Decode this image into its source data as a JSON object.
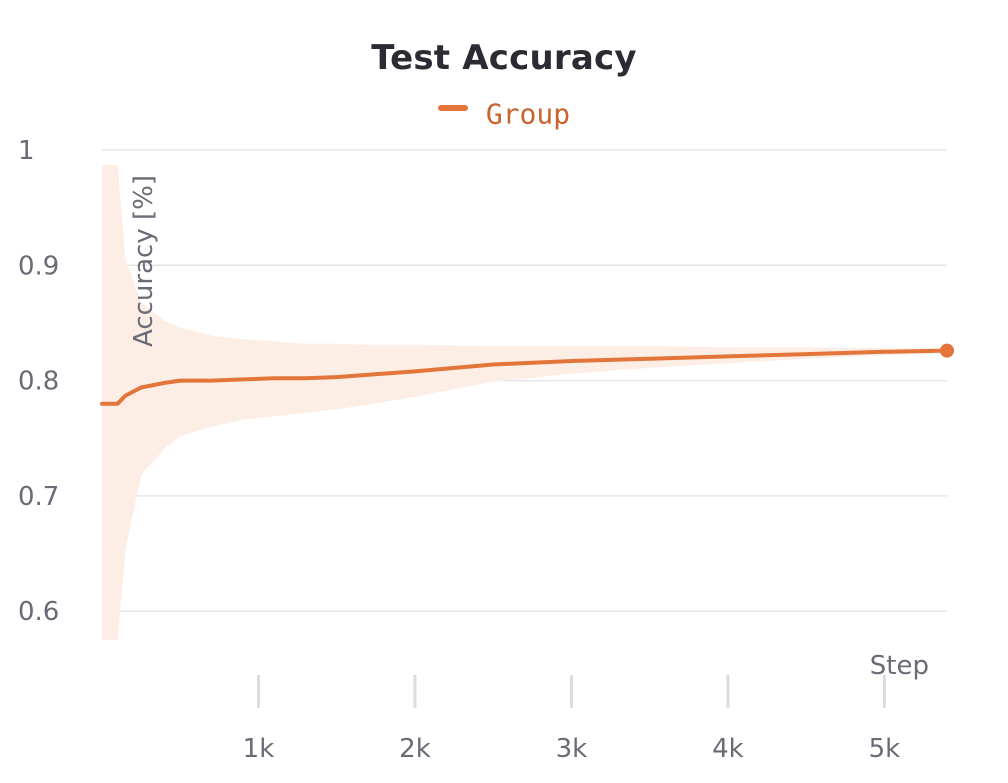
{
  "chart_data": {
    "type": "line",
    "title": "Test Accuracy",
    "xlabel": "Step",
    "ylabel": "Accuracy [%]",
    "xlim": [
      0,
      5400
    ],
    "ylim": [
      0.575,
      1.0
    ],
    "y_ticks": [
      1,
      0.9,
      0.8,
      0.7,
      0.6
    ],
    "y_tick_labels": [
      "1",
      "0.9",
      "0.8",
      "0.7",
      "0.6"
    ],
    "x_ticks": [
      1000,
      2000,
      3000,
      4000,
      5000
    ],
    "x_tick_labels": [
      "1k",
      "2k",
      "3k",
      "4k",
      "5k"
    ],
    "grid": true,
    "legend_position": "top-center",
    "series": [
      {
        "name": "Group",
        "color": "#e3753a",
        "band_color": "#fdeee5",
        "x": [
          0,
          100,
          150,
          250,
          400,
          500,
          700,
          900,
          1100,
          1300,
          1500,
          1700,
          2000,
          2500,
          3000,
          3500,
          4000,
          4500,
          5000,
          5400
        ],
        "y": [
          0.78,
          0.78,
          0.787,
          0.794,
          0.798,
          0.8,
          0.8,
          0.801,
          0.802,
          0.802,
          0.803,
          0.805,
          0.808,
          0.814,
          0.817,
          0.819,
          0.821,
          0.823,
          0.825,
          0.826
        ],
        "band_upper": [
          0.987,
          0.987,
          0.905,
          0.868,
          0.852,
          0.846,
          0.839,
          0.836,
          0.834,
          0.832,
          0.832,
          0.831,
          0.831,
          0.83,
          0.83,
          0.83,
          0.829,
          0.829,
          0.828,
          0.828
        ],
        "band_lower": [
          0.575,
          0.575,
          0.653,
          0.718,
          0.741,
          0.752,
          0.76,
          0.766,
          0.769,
          0.772,
          0.775,
          0.779,
          0.786,
          0.799,
          0.806,
          0.811,
          0.815,
          0.819,
          0.822,
          0.824
        ]
      }
    ]
  }
}
